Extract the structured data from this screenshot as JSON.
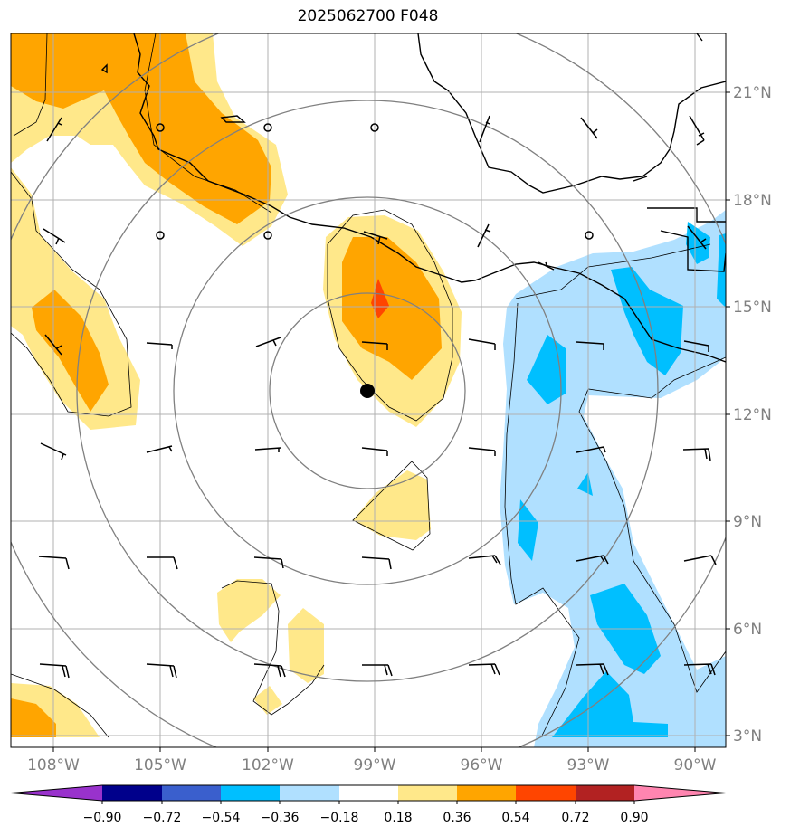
{
  "title": "2025062700 F048",
  "map": {
    "lon_labels": [
      "108°W",
      "105°W",
      "102°W",
      "99°W",
      "96°W",
      "93°W",
      "90°W"
    ],
    "lat_labels": [
      "21°N",
      "18°N",
      "15°N",
      "12°N",
      "9°N",
      "6°N",
      "3°N"
    ],
    "center_marker": {
      "lon": -99.2,
      "lat": 12.7,
      "color": "#000000"
    },
    "range_rings": {
      "count": 4,
      "color": "#808080"
    },
    "gridline_color": "#b0b0b0"
  },
  "colorbar": {
    "tick_labels": [
      "−0.90",
      "−0.72",
      "−0.54",
      "−0.36",
      "−0.18",
      "0.18",
      "0.36",
      "0.54",
      "0.72",
      "0.90"
    ],
    "colors": [
      "#9932cc",
      "#00008b",
      "#3a5fcd",
      "#00bfff",
      "#b0e0ff",
      "#ffffff",
      "#ffe88a",
      "#ffa500",
      "#ff4500",
      "#b22222",
      "#ff85b0"
    ]
  },
  "fill_colors": {
    "pos_low": "#ffe88a",
    "pos_mid": "#ffa500",
    "pos_high": "#ff4500",
    "neg_low": "#b0e0ff",
    "neg_mid": "#00bfff"
  }
}
